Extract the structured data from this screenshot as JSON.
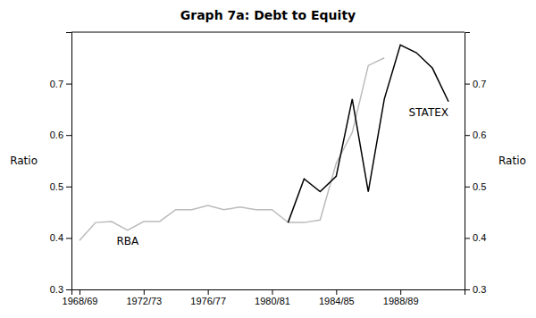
{
  "chart_data": {
    "type": "line",
    "title": "Graph 7a: Debt to Equity",
    "ylabel": "Ratio",
    "y2label": "Ratio",
    "xlim": [
      1967.5,
      1992.0
    ],
    "xticks": [
      {
        "value": 1968,
        "label": "1968/69"
      },
      {
        "value": 1972,
        "label": "1972/73"
      },
      {
        "value": 1976,
        "label": "1976/77"
      },
      {
        "value": 1980,
        "label": "1980/81"
      },
      {
        "value": 1984,
        "label": "1984/85"
      },
      {
        "value": 1988,
        "label": "1988/89"
      }
    ],
    "ylim": [
      0.3,
      0.8
    ],
    "yticks": [
      0.3,
      0.4,
      0.5,
      0.6,
      0.7
    ],
    "y2lim": [
      0.3,
      0.8
    ],
    "y2ticks": [
      0.3,
      0.4,
      0.5,
      0.6,
      0.7
    ],
    "grid": false,
    "series": [
      {
        "name": "RBA",
        "color": "#bbbbbb",
        "x": [
          1968,
          1969,
          1970,
          1971,
          1972,
          1973,
          1974,
          1975,
          1976,
          1977,
          1978,
          1979,
          1980,
          1981,
          1982,
          1983,
          1984,
          1985,
          1986,
          1987
        ],
        "values": [
          0.395,
          0.43,
          0.432,
          0.415,
          0.432,
          0.432,
          0.455,
          0.455,
          0.463,
          0.455,
          0.46,
          0.455,
          0.455,
          0.43,
          0.43,
          0.435,
          0.545,
          0.605,
          0.735,
          0.75
        ]
      },
      {
        "name": "STATEX",
        "color": "#000000",
        "x": [
          1981,
          1982,
          1983,
          1984,
          1985,
          1986,
          1987,
          1988,
          1989,
          1990,
          1991
        ],
        "values": [
          0.43,
          0.515,
          0.49,
          0.52,
          0.67,
          0.49,
          0.67,
          0.775,
          0.76,
          0.73,
          0.665
        ]
      }
    ]
  }
}
